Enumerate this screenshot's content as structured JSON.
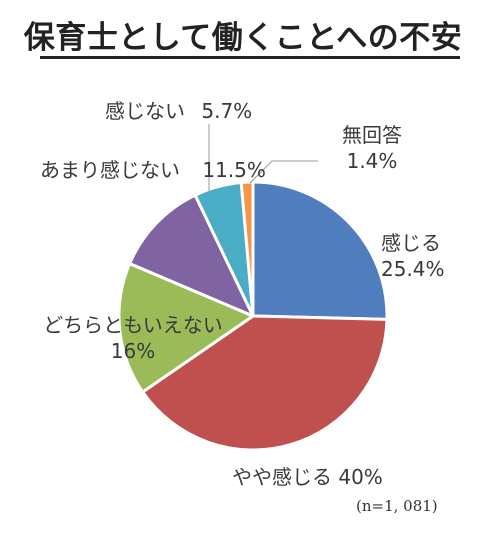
{
  "title": "保育士として働くことへの不安",
  "note": "(n=1, 081)",
  "chart_data": {
    "type": "pie",
    "title": "保育士として働くことへの不安",
    "slices": [
      {
        "label": "感じる",
        "value": 25.4,
        "display": "25.4%",
        "color": "#4f7dbd"
      },
      {
        "label": "やや感じる",
        "value": 40,
        "display": "40%",
        "color": "#c0504d"
      },
      {
        "label": "どちらともいえない",
        "value": 16,
        "display": "16%",
        "color": "#9bbb59"
      },
      {
        "label": "あまり感じない",
        "value": 11.5,
        "display": "11.5%",
        "color": "#8064a2"
      },
      {
        "label": "感じない",
        "value": 5.7,
        "display": "5.7%",
        "color": "#4bacc6"
      },
      {
        "label": "無回答",
        "value": 1.4,
        "display": "1.4%",
        "color": "#f79646"
      }
    ]
  }
}
